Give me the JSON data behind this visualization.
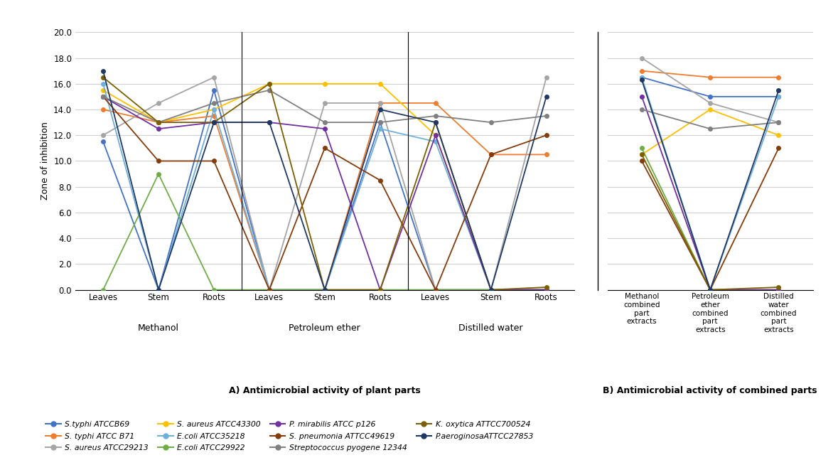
{
  "series": [
    {
      "name": "S.typhi ATCCB69",
      "color": "#4472C4",
      "values_A": [
        11.5,
        0,
        15.5,
        0,
        0,
        13,
        0,
        0,
        0
      ],
      "values_B": [
        16.5,
        15,
        15
      ]
    },
    {
      "name": "S. typhi ATCC B71",
      "color": "#ED7D31",
      "values_A": [
        14,
        13,
        13.5,
        0,
        0,
        14.5,
        14.5,
        10.5,
        10.5
      ],
      "values_B": [
        17,
        16.5,
        16.5
      ]
    },
    {
      "name": "S. aureus ATCC29213",
      "color": "#A5A5A5",
      "values_A": [
        12,
        14.5,
        16.5,
        0,
        14.5,
        14.5,
        0,
        0,
        16.5
      ],
      "values_B": [
        18,
        14.5,
        13
      ]
    },
    {
      "name": "S. aureus ATCC43300",
      "color": "#FFC000",
      "values_A": [
        15.5,
        13,
        14,
        16,
        16,
        16,
        12,
        0,
        0
      ],
      "values_B": [
        10.5,
        14,
        12
      ]
    },
    {
      "name": "E.coli ATCC35218",
      "color": "#70B0D8",
      "values_A": [
        16,
        0,
        14,
        0,
        0,
        12.5,
        11.5,
        0,
        0
      ],
      "values_B": [
        16.5,
        0,
        15
      ]
    },
    {
      "name": "E.coli ATCC29922",
      "color": "#70AD47",
      "values_A": [
        0,
        9,
        0,
        0,
        0,
        0,
        0,
        0,
        0
      ],
      "values_B": [
        11,
        0,
        0
      ]
    },
    {
      "name": "P. mirabilis ATCC p126",
      "color": "#7030A0",
      "values_A": [
        15,
        12.5,
        13,
        13,
        12.5,
        0,
        12,
        0,
        0
      ],
      "values_B": [
        15,
        0,
        0
      ]
    },
    {
      "name": "S. pneumonia ATTCC49619",
      "color": "#843C0C",
      "values_A": [
        15,
        10,
        10,
        0,
        11,
        8.5,
        0,
        10.5,
        12
      ],
      "values_B": [
        10,
        0,
        11
      ]
    },
    {
      "name": "Streptococcus pyogene 12344",
      "color": "#808080",
      "values_A": [
        15,
        13,
        14.5,
        15.5,
        13,
        13,
        13.5,
        13,
        13.5
      ],
      "values_B": [
        14,
        12.5,
        13
      ]
    },
    {
      "name": "K. oxytica ATTCC700524",
      "color": "#7B6000",
      "values_A": [
        16.5,
        13,
        13,
        16,
        0,
        0,
        13,
        0,
        0.2
      ],
      "values_B": [
        10.5,
        0,
        0.2
      ]
    },
    {
      "name": "P.aeroginosaATTCC27853",
      "color": "#1F3864",
      "values_A": [
        17,
        0,
        13,
        13,
        0,
        14,
        13,
        0,
        15
      ],
      "values_B": [
        16.3,
        0,
        15.5
      ]
    }
  ],
  "x_labels_A": [
    "Leaves",
    "Stem",
    "Roots",
    "Leaves",
    "Stem",
    "Roots",
    "Leaves",
    "Stem",
    "Roots"
  ],
  "group_labels_A": [
    "Methanol",
    "Petroleum ether",
    "Distilled water"
  ],
  "group_centers_A": [
    1,
    4,
    7
  ],
  "x_labels_B": [
    "Methanol\ncombined\npart\nextracts",
    "Petroleum\nether\ncombined\npart\nextracts",
    "Distilled\nwater\ncombined\npart\nextracts"
  ],
  "ylabel": "Zone of inhibition",
  "ylim": [
    0,
    20
  ],
  "yticks": [
    0.0,
    2.0,
    4.0,
    6.0,
    8.0,
    10.0,
    12.0,
    14.0,
    16.0,
    18.0,
    20.0
  ],
  "title_A": "A) Antimicrobial activity of plant parts",
  "title_B": "B) Antimicrobial activity of combined parts",
  "legend_order": [
    [
      "S.typhi ATCCB69",
      "#4472C4"
    ],
    [
      "S. typhi ATCC B71",
      "#ED7D31"
    ],
    [
      "S. aureus ATCC29213",
      "#A5A5A5"
    ],
    [
      "S. aureus ATCC43300",
      "#FFC000"
    ],
    [
      "E.coli ATCC35218",
      "#70B0D8"
    ],
    [
      "E.coli ATCC29922",
      "#70AD47"
    ],
    [
      "P. mirabilis ATCC p126",
      "#7030A0"
    ],
    [
      "S. pneumonia ATTCC49619",
      "#843C0C"
    ],
    [
      "Streptococcus pyogene 12344",
      "#808080"
    ],
    [
      "K. oxytica ATTCC700524",
      "#7B6000"
    ],
    [
      "P.aeroginosaATTCC27853",
      "#1F3864"
    ]
  ]
}
